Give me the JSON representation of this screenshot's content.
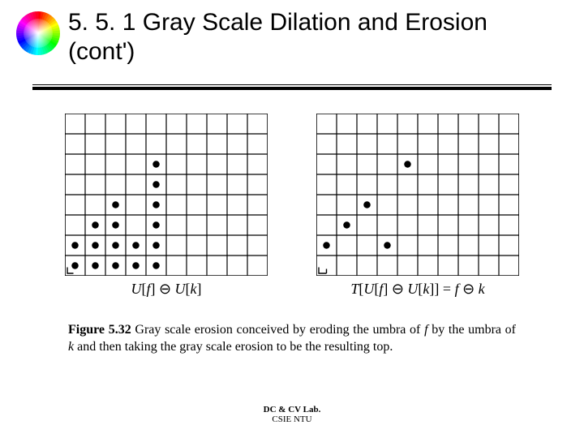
{
  "title": "5. 5. 1 Gray Scale Dilation and Erosion (cont')",
  "icon": {
    "gradient_colors": [
      "#ff0000",
      "#ffff00",
      "#00ff00",
      "#00ffff",
      "#0000ff",
      "#ff00ff",
      "#ff0000"
    ]
  },
  "figure": {
    "grid": {
      "cols": 10,
      "rows": 8,
      "cell": 25,
      "stroke": "#000000",
      "stroke_width": 1.2,
      "outer_stroke_width": 1.6,
      "dot_radius_ratio": 0.17,
      "dot_color": "#000000"
    },
    "left": {
      "caption_html": "<i>U</i>[<i>f</i>] &#8854; <i>U</i>[<i>k</i>]",
      "corner_mark": {
        "col": 0,
        "row": 7,
        "type": "L"
      },
      "dots": [
        {
          "col": 4,
          "row": 2
        },
        {
          "col": 4,
          "row": 3
        },
        {
          "col": 2,
          "row": 4
        },
        {
          "col": 4,
          "row": 4
        },
        {
          "col": 1,
          "row": 5
        },
        {
          "col": 2,
          "row": 5
        },
        {
          "col": 4,
          "row": 5
        },
        {
          "col": 0,
          "row": 6
        },
        {
          "col": 1,
          "row": 6
        },
        {
          "col": 2,
          "row": 6
        },
        {
          "col": 3,
          "row": 6
        },
        {
          "col": 4,
          "row": 6
        },
        {
          "col": 0,
          "row": 7
        },
        {
          "col": 1,
          "row": 7
        },
        {
          "col": 2,
          "row": 7
        },
        {
          "col": 3,
          "row": 7
        },
        {
          "col": 4,
          "row": 7
        }
      ]
    },
    "right": {
      "caption_html": "<i>T</i>[<i>U</i>[<i>f</i>] &#8854; <i>U</i>[<i>k</i>]] = <i>f</i> &#8854; <i>k</i>",
      "corner_mark": {
        "col": 0,
        "row": 7,
        "type": "bracket"
      },
      "dots": [
        {
          "col": 4,
          "row": 2
        },
        {
          "col": 2,
          "row": 4
        },
        {
          "col": 1,
          "row": 5
        },
        {
          "col": 0,
          "row": 6
        },
        {
          "col": 3,
          "row": 6
        }
      ]
    },
    "caption_html": "<span class=\"fig-label\">Figure 5.32</span> Gray scale erosion conceived by eroding the umbra of <i>f</i> by the umbra of <i>k</i> and then taking the gray scale erosion to be the resulting top."
  },
  "footer": {
    "line1": "DC & CV Lab.",
    "line2": "CSIE NTU"
  }
}
